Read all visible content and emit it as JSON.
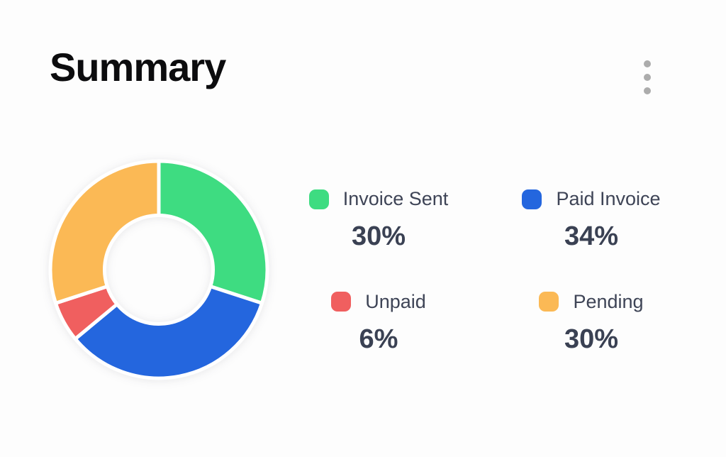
{
  "card": {
    "title": "Summary"
  },
  "icons": {
    "menu": "kebab-menu-icon"
  },
  "colors": {
    "background": "#fdfdfd",
    "title_text": "#0c0c0e",
    "legend_text": "#3e4456",
    "percent_text": "#3a4153",
    "menu_dots": "#acacac",
    "slice_gap": "#ffffff"
  },
  "chart_data": {
    "type": "pie",
    "variant": "donut",
    "title": "Summary",
    "start_angle_deg": 0,
    "direction": "clockwise",
    "inner_radius_ratio": 0.5,
    "legend_position": "right",
    "legend_layout": "2x2-grid",
    "segments": [
      {
        "label": "Invoice Sent",
        "value_pct": 30,
        "display": "30%",
        "color": "#3edc81"
      },
      {
        "label": "Paid Invoice",
        "value_pct": 34,
        "display": "34%",
        "color": "#2466de"
      },
      {
        "label": "Unpaid",
        "value_pct": 6,
        "display": "6%",
        "color": "#f05f5f"
      },
      {
        "label": "Pending",
        "value_pct": 30,
        "display": "30%",
        "color": "#fbb955"
      }
    ]
  }
}
